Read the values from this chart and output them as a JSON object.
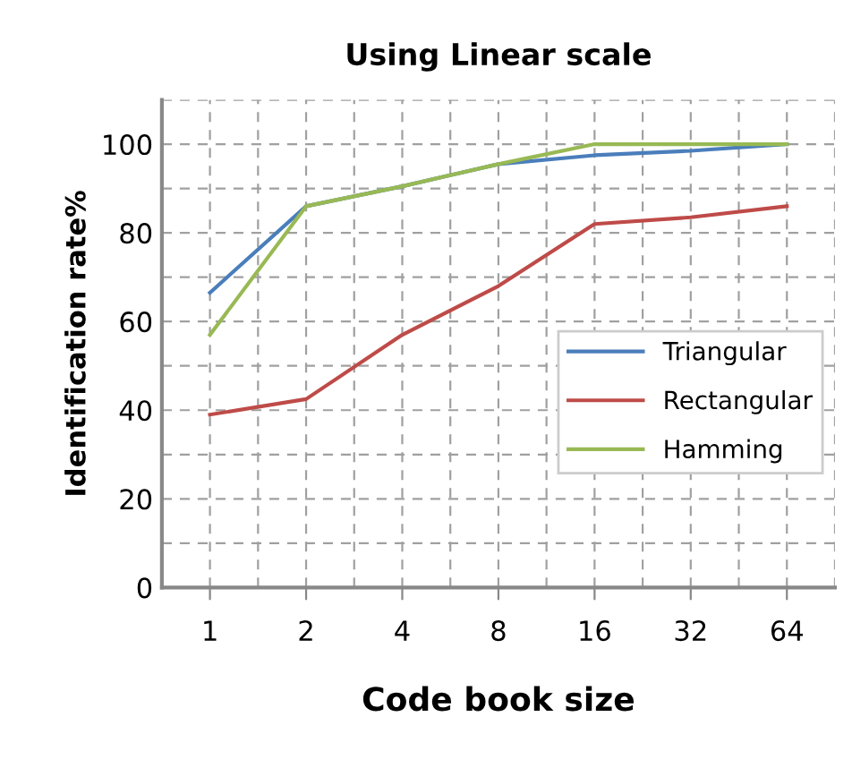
{
  "chart_data": {
    "type": "line",
    "title": "Using Linear scale",
    "xlabel": "Code book size",
    "ylabel": "Identification rate%",
    "categories": [
      "1",
      "2",
      "4",
      "8",
      "16",
      "32",
      "64"
    ],
    "series": [
      {
        "name": "Triangular",
        "color": "#4a7ebb",
        "values": [
          66.5,
          86,
          90.5,
          95.5,
          97.5,
          98.5,
          100
        ]
      },
      {
        "name": "Rectangular",
        "color": "#be4b48",
        "values": [
          39,
          42.5,
          57,
          68,
          82,
          83.5,
          86
        ]
      },
      {
        "name": "Hamming",
        "color": "#98b954",
        "values": [
          57,
          86,
          90.5,
          95.5,
          100,
          100,
          100
        ]
      }
    ],
    "ylim": [
      0,
      110
    ],
    "yticks": [
      0,
      20,
      40,
      60,
      80,
      100
    ],
    "grid": true,
    "legend": "right",
    "marker": "none",
    "line_style": "solid"
  }
}
